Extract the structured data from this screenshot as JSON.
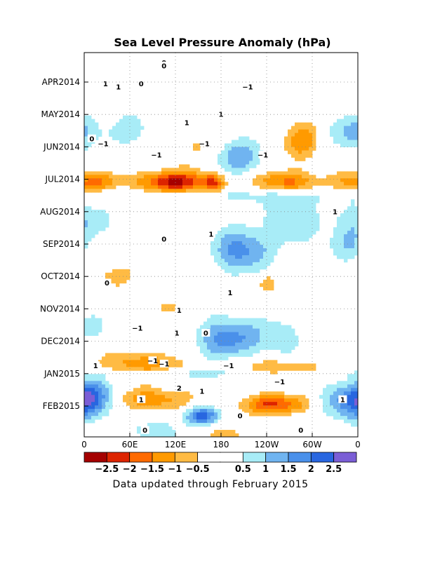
{
  "chart_data": {
    "type": "heatmap",
    "title": "Sea Level Pressure Anomaly (hPa)",
    "x_ticks": [
      "0",
      "60E",
      "120E",
      "180",
      "120W",
      "60W",
      "0"
    ],
    "y_ticks": [
      "APR2014",
      "MAY2014",
      "JUN2014",
      "JUL2014",
      "AUG2014",
      "SEP2014",
      "OCT2014",
      "NOV2014",
      "DEC2014",
      "JAN2015",
      "FEB2015"
    ],
    "colorbar": {
      "colors": [
        "#a50000",
        "#dd2400",
        "#ff6a00",
        "#ff9a00",
        "#ffbb44",
        "#ffffff",
        "#ffffff",
        "#a8ecf7",
        "#70b4f0",
        "#4a90ea",
        "#2866e0",
        "#7b5ed6"
      ],
      "labels": [
        "−2.5",
        "−2",
        "−1.5",
        "−1",
        "−0.5",
        "0.5",
        "1",
        "1.5",
        "2",
        "2.5"
      ]
    },
    "features": [
      {
        "lon": 350,
        "t": 1.5,
        "rx": 30,
        "rt": 0.55,
        "v": 1.2
      },
      {
        "lon": 60,
        "t": 1.5,
        "rx": 30,
        "rt": 0.5,
        "v": 0.8
      },
      {
        "lon": 285,
        "t": 1.8,
        "rx": 25,
        "rt": 0.6,
        "v": -1.3
      },
      {
        "lon": 200,
        "t": 2.3,
        "rx": 38,
        "rt": 0.6,
        "v": 1.3
      },
      {
        "lon": 155,
        "t": 2.0,
        "rx": 25,
        "rt": 0.6,
        "v": -0.8
      },
      {
        "lon": 120,
        "t": 3.1,
        "rx": 48,
        "rt": 0.35,
        "v": -2.6
      },
      {
        "lon": 10,
        "t": 3.1,
        "rx": 40,
        "rt": 0.3,
        "v": -1.6
      },
      {
        "lon": 265,
        "t": 3.1,
        "rx": 40,
        "rt": 0.35,
        "v": -1.9
      },
      {
        "lon": 170,
        "t": 3.1,
        "rx": 15,
        "rt": 0.3,
        "v": -1.5
      },
      {
        "lon": 180,
        "t": 3.5,
        "rx": 200,
        "rt": 0.25,
        "v": 0.7
      },
      {
        "lon": 5,
        "t": 4.3,
        "rx": 35,
        "rt": 0.5,
        "v": 0.9
      },
      {
        "lon": 270,
        "t": 4.2,
        "rx": 40,
        "rt": 0.9,
        "v": 0.8
      },
      {
        "lon": 205,
        "t": 5.2,
        "rx": 35,
        "rt": 0.65,
        "v": 1.8
      },
      {
        "lon": 345,
        "t": 5.0,
        "rx": 30,
        "rt": 0.5,
        "v": 0.9
      },
      {
        "lon": 240,
        "t": 6.2,
        "rx": 12,
        "rt": 0.3,
        "v": -0.9
      },
      {
        "lon": 40,
        "t": 6.0,
        "rx": 25,
        "rt": 0.3,
        "v": -0.8
      },
      {
        "lon": 120,
        "t": 7.0,
        "rx": 25,
        "rt": 0.3,
        "v": -0.6
      },
      {
        "lon": 190,
        "t": 7.9,
        "rx": 45,
        "rt": 0.65,
        "v": 1.7
      },
      {
        "lon": 260,
        "t": 7.9,
        "rx": 25,
        "rt": 0.6,
        "v": 0.8
      },
      {
        "lon": 5,
        "t": 7.5,
        "rx": 25,
        "rt": 0.5,
        "v": 0.6
      },
      {
        "lon": 75,
        "t": 8.7,
        "rx": 55,
        "rt": 0.35,
        "v": -1.4
      },
      {
        "lon": 255,
        "t": 8.9,
        "rx": 55,
        "rt": 0.35,
        "v": -1.3
      },
      {
        "lon": 180,
        "t": 9.0,
        "rx": 200,
        "rt": 0.15,
        "v": 0.8
      },
      {
        "lon": 15,
        "t": 9.7,
        "rx": 25,
        "rt": 0.55,
        "v": 1.5
      },
      {
        "lon": 90,
        "t": 9.8,
        "rx": 50,
        "rt": 0.35,
        "v": -1.4
      },
      {
        "lon": 250,
        "t": 9.95,
        "rx": 45,
        "rt": 0.3,
        "v": -2.0
      },
      {
        "lon": 350,
        "t": 9.9,
        "rx": 35,
        "rt": 0.55,
        "v": 1.9
      },
      {
        "lon": 155,
        "t": 10.3,
        "rx": 25,
        "rt": 0.3,
        "v": 2.2
      },
      {
        "lon": 95,
        "t": 10.8,
        "rx": 35,
        "rt": 0.35,
        "v": 1.0
      },
      {
        "lon": 185,
        "t": 10.9,
        "rx": 40,
        "rt": 0.5,
        "v": -0.6
      },
      {
        "lon": 290,
        "t": 11.3,
        "rx": 25,
        "rt": 0.4,
        "v": -0.6
      }
    ],
    "contour_labels": [
      {
        "text": "1",
        "lon": 28,
        "t": 0.05
      },
      {
        "text": "1",
        "lon": 45,
        "t": 0.15
      },
      {
        "text": "0",
        "lon": 105,
        "t": -0.6
      },
      {
        "text": "0",
        "lon": 75,
        "t": 0.05
      },
      {
        "text": "−1",
        "lon": 215,
        "t": 0.15
      },
      {
        "text": "1",
        "lon": 180,
        "t": 1.0
      },
      {
        "text": "1",
        "lon": 135,
        "t": 1.25
      },
      {
        "text": "0",
        "lon": 10,
        "t": 1.75
      },
      {
        "text": "−1",
        "lon": 25,
        "t": 1.9
      },
      {
        "text": "−1",
        "lon": 158,
        "t": 1.9
      },
      {
        "text": "−1",
        "lon": 95,
        "t": 2.25
      },
      {
        "text": "−1",
        "lon": 235,
        "t": 2.25
      },
      {
        "text": "0",
        "lon": 105,
        "t": -0.5
      },
      {
        "text": "1",
        "lon": 330,
        "t": 4.0
      },
      {
        "text": "1",
        "lon": 167,
        "t": 4.7
      },
      {
        "text": "0",
        "lon": 105,
        "t": 4.85
      },
      {
        "text": "−1",
        "lon": 70,
        "t": 7.6
      },
      {
        "text": "1",
        "lon": 192,
        "t": 6.5
      },
      {
        "text": "1",
        "lon": 125,
        "t": 7.05
      },
      {
        "text": "0",
        "lon": 30,
        "t": 6.2
      },
      {
        "text": "−1",
        "lon": 90,
        "t": 8.6
      },
      {
        "text": "1",
        "lon": 122,
        "t": 7.75
      },
      {
        "text": "0",
        "lon": 160,
        "t": 7.75
      },
      {
        "text": "1",
        "lon": 15,
        "t": 8.75
      },
      {
        "text": "−1",
        "lon": 105,
        "t": 8.7
      },
      {
        "text": "−1",
        "lon": 190,
        "t": 8.75
      },
      {
        "text": "2",
        "lon": 125,
        "t": 9.45
      },
      {
        "text": "−1",
        "lon": 257,
        "t": 9.25
      },
      {
        "text": "1",
        "lon": 155,
        "t": 9.55
      },
      {
        "text": "1",
        "lon": 75,
        "t": 9.8
      },
      {
        "text": "1",
        "lon": 340,
        "t": 9.8
      },
      {
        "text": "0",
        "lon": 205,
        "t": 10.3
      },
      {
        "text": "0",
        "lon": 80,
        "t": 10.75
      },
      {
        "text": "0",
        "lon": 285,
        "t": 10.75
      }
    ]
  },
  "caption": "Data updated through February 2015"
}
